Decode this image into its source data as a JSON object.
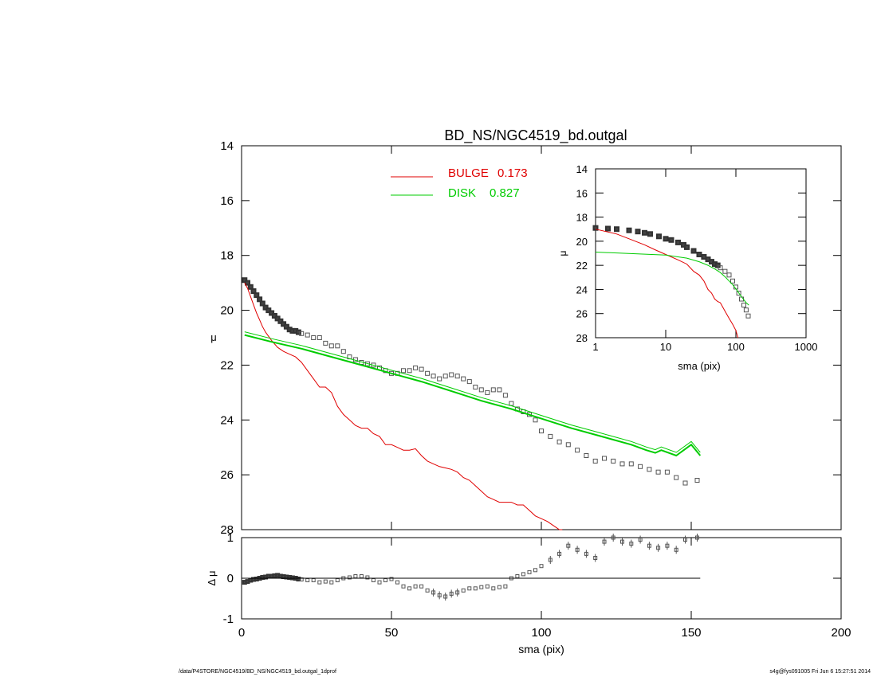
{
  "title": "BD_NS/NGC4519_bd.outgal",
  "footer_left": "/data/P4STORE/NGC4519/BD_NS/NGC4519_bd.outgal_1dprof",
  "footer_right": "s4g@fys091005  Fri Jun  6 15:27:51 2014",
  "colors": {
    "bulge": "#e00000",
    "disk": "#00cc00",
    "data": "#555555",
    "axis": "#000000"
  },
  "legend": [
    {
      "label": "BULGE",
      "value": "0.173",
      "color": "#e00000"
    },
    {
      "label": "DISK",
      "value": "0.827",
      "color": "#00cc00"
    }
  ],
  "chart_data": [
    {
      "id": "main",
      "type": "scatter",
      "ylabel": "μ",
      "xlabel": "",
      "xlim": [
        0,
        200
      ],
      "ylim": [
        28,
        14
      ],
      "yticks": [
        "14",
        "16",
        "18",
        "20",
        "22",
        "24",
        "26",
        "28"
      ],
      "grid": false,
      "legend_position": "top-center",
      "series": [
        {
          "name": "data",
          "kind": "points",
          "x": [
            1,
            2,
            3,
            4,
            5,
            6,
            7,
            8,
            9,
            10,
            11,
            12,
            13,
            14,
            15,
            16,
            17,
            18,
            19,
            20,
            22,
            24,
            26,
            28,
            30,
            32,
            34,
            36,
            38,
            40,
            42,
            44,
            46,
            48,
            50,
            52,
            54,
            56,
            58,
            60,
            62,
            64,
            66,
            68,
            70,
            72,
            74,
            76,
            78,
            80,
            82,
            84,
            86,
            88,
            90,
            92,
            94,
            96,
            98,
            100,
            103,
            106,
            109,
            112,
            115,
            118,
            121,
            124,
            127,
            130,
            133,
            136,
            139,
            142,
            145,
            148,
            152
          ],
          "y": [
            18.9,
            19.0,
            19.15,
            19.3,
            19.45,
            19.6,
            19.75,
            19.9,
            20.0,
            20.1,
            20.2,
            20.3,
            20.4,
            20.5,
            20.6,
            20.7,
            20.75,
            20.75,
            20.8,
            20.85,
            20.9,
            21.0,
            21.0,
            21.2,
            21.3,
            21.3,
            21.5,
            21.7,
            21.8,
            21.9,
            21.95,
            22.0,
            22.1,
            22.2,
            22.3,
            22.3,
            22.2,
            22.2,
            22.1,
            22.15,
            22.3,
            22.4,
            22.5,
            22.4,
            22.35,
            22.4,
            22.5,
            22.6,
            22.8,
            22.9,
            23.0,
            22.9,
            22.9,
            23.1,
            23.4,
            23.6,
            23.7,
            23.8,
            24.0,
            24.4,
            24.6,
            24.8,
            24.9,
            25.1,
            25.3,
            25.5,
            25.4,
            25.5,
            25.6,
            25.6,
            25.7,
            25.8,
            25.9,
            25.9,
            26.1,
            26.3,
            26.2
          ]
        },
        {
          "name": "bulge",
          "kind": "line",
          "x": [
            1,
            2,
            3,
            4,
            5,
            6,
            7,
            8,
            10,
            12,
            14,
            16,
            18,
            20,
            22,
            24,
            26,
            28,
            30,
            32,
            34,
            36,
            38,
            40,
            42,
            44,
            46,
            48,
            50,
            52,
            54,
            56,
            58,
            60,
            62,
            64,
            66,
            68,
            70,
            72,
            74,
            76,
            78,
            80,
            82,
            84,
            86,
            88,
            90,
            92,
            94,
            96,
            98,
            100,
            102,
            104,
            106,
            107
          ],
          "y": [
            19.0,
            19.2,
            19.5,
            19.8,
            20.1,
            20.35,
            20.6,
            20.8,
            21.1,
            21.35,
            21.5,
            21.6,
            21.7,
            21.9,
            22.2,
            22.5,
            22.8,
            22.8,
            23.0,
            23.5,
            23.8,
            24.0,
            24.2,
            24.3,
            24.3,
            24.5,
            24.6,
            24.9,
            24.9,
            25.0,
            25.1,
            25.1,
            25.05,
            25.3,
            25.5,
            25.6,
            25.7,
            25.75,
            25.8,
            25.9,
            26.1,
            26.2,
            26.4,
            26.6,
            26.8,
            26.9,
            27.0,
            27.0,
            27.0,
            27.1,
            27.1,
            27.3,
            27.5,
            27.6,
            27.7,
            27.85,
            28.0,
            28.0
          ]
        },
        {
          "name": "disk",
          "kind": "line",
          "x": [
            1,
            10,
            20,
            30,
            40,
            50,
            60,
            70,
            80,
            90,
            100,
            110,
            120,
            130,
            135,
            138,
            140,
            145,
            150,
            153
          ],
          "y": [
            20.9,
            21.15,
            21.4,
            21.7,
            22.0,
            22.3,
            22.6,
            22.95,
            23.3,
            23.6,
            23.95,
            24.3,
            24.6,
            24.9,
            25.1,
            25.2,
            25.1,
            25.3,
            24.9,
            25.3
          ]
        }
      ]
    },
    {
      "id": "residual",
      "type": "scatter",
      "ylabel": "Δ μ",
      "xlabel": "sma (pix)",
      "xlim": [
        0,
        200
      ],
      "ylim": [
        -1,
        1
      ],
      "xticks": [
        "0",
        "50",
        "100",
        "150",
        "200"
      ],
      "yticks": [
        "-1",
        "0",
        "1"
      ],
      "series": [
        {
          "name": "residual",
          "kind": "points",
          "x": [
            1,
            2,
            3,
            4,
            5,
            6,
            7,
            8,
            9,
            10,
            11,
            12,
            13,
            14,
            15,
            16,
            17,
            18,
            19,
            20,
            22,
            24,
            26,
            28,
            30,
            32,
            34,
            36,
            38,
            40,
            42,
            44,
            46,
            48,
            50,
            52,
            54,
            56,
            58,
            60,
            62,
            64,
            66,
            68,
            70,
            72,
            74,
            76,
            78,
            80,
            82,
            84,
            86,
            88,
            90,
            92,
            94,
            96,
            98,
            100,
            103,
            106,
            109,
            112,
            115,
            118,
            121,
            124,
            127,
            130,
            133,
            136,
            139,
            142,
            145,
            148,
            152
          ],
          "y": [
            -0.1,
            -0.08,
            -0.05,
            -0.03,
            -0.02,
            0.0,
            0.02,
            0.03,
            0.05,
            0.05,
            0.06,
            0.07,
            0.05,
            0.04,
            0.03,
            0.02,
            0.01,
            0.0,
            -0.02,
            -0.03,
            -0.05,
            -0.05,
            -0.1,
            -0.08,
            -0.1,
            -0.05,
            0.0,
            0.02,
            0.05,
            0.05,
            0.02,
            -0.05,
            -0.1,
            -0.05,
            -0.02,
            -0.1,
            -0.2,
            -0.25,
            -0.2,
            -0.2,
            -0.3,
            -0.35,
            -0.42,
            -0.45,
            -0.38,
            -0.35,
            -0.3,
            -0.25,
            -0.25,
            -0.22,
            -0.2,
            -0.25,
            -0.22,
            -0.2,
            0.0,
            0.05,
            0.1,
            0.15,
            0.2,
            0.3,
            0.45,
            0.6,
            0.8,
            0.7,
            0.6,
            0.5,
            0.9,
            1.0,
            0.9,
            0.85,
            0.95,
            0.8,
            0.75,
            0.8,
            0.7,
            0.95,
            1.0
          ]
        },
        {
          "name": "zero",
          "kind": "line",
          "x": [
            1,
            153
          ],
          "y": [
            0,
            0
          ]
        }
      ]
    },
    {
      "id": "inset",
      "type": "scatter",
      "xscale": "log",
      "xlabel": "sma (pix)",
      "ylabel": "μ",
      "xlim": [
        1,
        1000
      ],
      "ylim": [
        28,
        14
      ],
      "xticks": [
        "1",
        "10",
        "100",
        "1000"
      ],
      "yticks": [
        "14",
        "16",
        "18",
        "20",
        "22",
        "24",
        "26",
        "28"
      ],
      "series": [
        {
          "name": "data",
          "kind": "points",
          "x": [
            1,
            1.5,
            2,
            3,
            4,
            5,
            6,
            8,
            10,
            12,
            15,
            18,
            20,
            25,
            30,
            35,
            40,
            45,
            50,
            55,
            60,
            70,
            80,
            90,
            100,
            110,
            120,
            130,
            140,
            150
          ],
          "y": [
            18.9,
            18.95,
            19.0,
            19.1,
            19.2,
            19.3,
            19.4,
            19.6,
            19.8,
            19.9,
            20.1,
            20.3,
            20.5,
            20.8,
            21.1,
            21.3,
            21.5,
            21.7,
            21.9,
            22.0,
            22.2,
            22.5,
            22.8,
            23.3,
            23.8,
            24.3,
            24.8,
            25.3,
            25.7,
            26.2
          ]
        },
        {
          "name": "bulge",
          "kind": "line",
          "x": [
            1,
            2,
            3,
            5,
            7,
            10,
            15,
            20,
            25,
            30,
            35,
            40,
            45,
            50,
            55,
            60,
            70,
            80,
            90,
            100,
            107
          ],
          "y": [
            19.0,
            19.4,
            19.8,
            20.3,
            20.7,
            21.1,
            21.55,
            21.9,
            22.5,
            22.8,
            23.3,
            24.0,
            24.3,
            24.8,
            25.0,
            25.1,
            25.8,
            26.4,
            26.9,
            27.4,
            28.0
          ]
        },
        {
          "name": "disk",
          "kind": "line",
          "x": [
            1,
            10,
            20,
            30,
            40,
            50,
            60,
            70,
            80,
            90,
            100,
            120,
            140,
            153
          ],
          "y": [
            20.9,
            21.15,
            21.4,
            21.7,
            22.0,
            22.3,
            22.6,
            22.95,
            23.3,
            23.6,
            23.95,
            24.6,
            25.1,
            25.3
          ]
        }
      ]
    }
  ]
}
